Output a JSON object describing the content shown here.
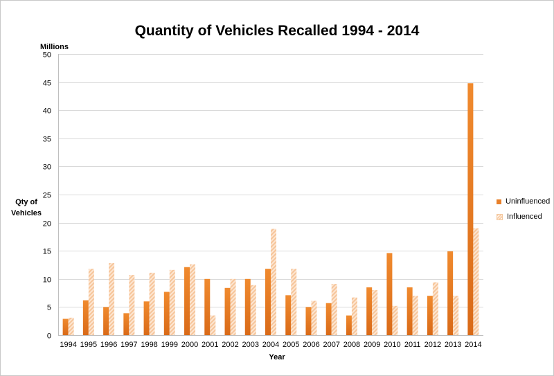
{
  "chart_data": {
    "type": "bar",
    "title": "Quantity of Vehicles Recalled 1994 - 2014",
    "units": "Millions",
    "ylabel_line1": "Qty of",
    "ylabel_line2": "Vehicles",
    "xlabel": "Year",
    "ylim": [
      0,
      50
    ],
    "yticks": [
      0,
      5,
      10,
      15,
      20,
      25,
      30,
      35,
      40,
      45,
      50
    ],
    "grid": true,
    "legend_position": "right",
    "categories": [
      "1994",
      "1995",
      "1996",
      "1997",
      "1998",
      "1999",
      "2000",
      "2001",
      "2002",
      "2003",
      "2004",
      "2005",
      "2006",
      "2007",
      "2008",
      "2009",
      "2010",
      "2011",
      "2012",
      "2013",
      "2014"
    ],
    "series": [
      {
        "name": "Uninfluenced",
        "color": "#e8802a",
        "values": [
          2.9,
          6.2,
          5.0,
          3.9,
          6.0,
          7.7,
          12.1,
          10.0,
          8.4,
          10.0,
          11.8,
          7.1,
          5.0,
          5.7,
          3.5,
          8.5,
          14.6,
          8.5,
          7.0,
          14.9,
          44.8
        ]
      },
      {
        "name": "Influenced",
        "color": "#f9cfa9",
        "values": [
          3.1,
          11.8,
          12.8,
          10.7,
          11.1,
          11.6,
          12.6,
          3.5,
          10.0,
          8.9,
          18.9,
          11.8,
          6.1,
          9.1,
          6.7,
          8.0,
          5.2,
          7.0,
          9.4,
          7.0,
          19.0
        ]
      }
    ]
  }
}
